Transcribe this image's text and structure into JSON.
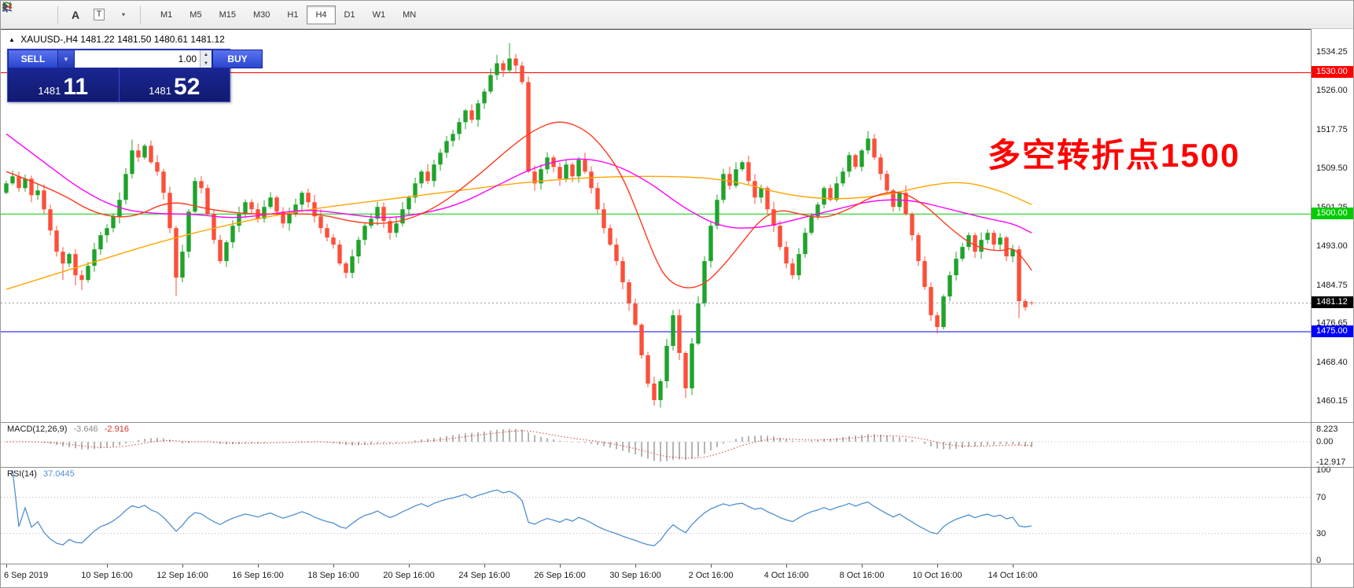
{
  "toolbar": {
    "icons": [
      {
        "name": "chart-type-icon"
      },
      {
        "name": "indicators-icon"
      },
      {
        "name": "text-tool-icon",
        "glyph": "A"
      },
      {
        "name": "label-tool-icon",
        "glyph": "T"
      },
      {
        "name": "drawing-tool-icon",
        "glyph": "▾"
      }
    ],
    "timeframes": [
      "M1",
      "M5",
      "M15",
      "M30",
      "H1",
      "H4",
      "D1",
      "W1",
      "MN"
    ],
    "active_timeframe": "H4"
  },
  "chart": {
    "title_arrow": "▲",
    "symbol": "XAUUSD-,H4",
    "ohlc": "1481.22 1481.50 1480.61 1481.12",
    "annotation": {
      "text": "多空转折点1500",
      "color": "#ff0000"
    }
  },
  "trade_panel": {
    "sell_label": "SELL",
    "buy_label": "BUY",
    "volume": "1.00",
    "dropdown_glyph": "▼",
    "spin_up_glyph": "▲",
    "spin_down_glyph": "▼",
    "bid": {
      "prefix": "1481",
      "big": "11"
    },
    "ask": {
      "prefix": "1481",
      "big": "52"
    }
  },
  "chart_data": {
    "type": "candlestick",
    "symbol": "XAUUSD",
    "timeframe": "H4",
    "last_ohlc": {
      "open": 1481.22,
      "high": 1481.5,
      "low": 1480.61,
      "close": 1481.12
    },
    "price_axis": {
      "ticks": [
        "1534.25",
        "1526.00",
        "1517.75",
        "1509.50",
        "1501.25",
        "1493.00",
        "1484.75",
        "1476.65",
        "1468.40",
        "1460.15"
      ]
    },
    "hlines": [
      {
        "value": 1530.0,
        "label": "1530.00",
        "color": "#ff0000"
      },
      {
        "value": 1500.0,
        "label": "1500.00",
        "color": "#00cc00"
      },
      {
        "value": 1475.0,
        "label": "1475.00",
        "color": "#0000ff"
      }
    ],
    "current_price": {
      "value": 1481.12,
      "label": "1481.12"
    },
    "candles": {
      "up_color": "#1fa32b",
      "down_color": "#fb4f3a",
      "first_open": 1504.5,
      "closes": [
        1506.5,
        1508.0,
        1505.5,
        1507.5,
        1504.0,
        1505.0,
        1501.0,
        1496.5,
        1492.0,
        1489.5,
        1491.5,
        1487.0,
        1486.0,
        1489.0,
        1492.5,
        1495.5,
        1497.0,
        1499.5,
        1503.0,
        1508.5,
        1513.5,
        1512.0,
        1514.5,
        1511.0,
        1509.0,
        1504.5,
        1497.0,
        1486.5,
        1492.0,
        1500.5,
        1507.0,
        1505.5,
        1500.0,
        1494.5,
        1490.0,
        1494.0,
        1497.5,
        1500.0,
        1502.5,
        1501.0,
        1499.0,
        1501.5,
        1503.5,
        1500.5,
        1498.0,
        1500.0,
        1502.0,
        1504.5,
        1502.5,
        1499.5,
        1497.0,
        1495.0,
        1493.5,
        1489.5,
        1487.5,
        1491.0,
        1494.5,
        1497.5,
        1499.0,
        1501.5,
        1498.5,
        1496.0,
        1498.0,
        1501.0,
        1503.5,
        1506.5,
        1509.0,
        1507.0,
        1510.5,
        1513.0,
        1515.5,
        1517.0,
        1519.5,
        1522.0,
        1520.0,
        1523.5,
        1526.0,
        1529.5,
        1532.0,
        1530.5,
        1533.0,
        1531.5,
        1528.0,
        1509.0,
        1506.5,
        1509.5,
        1512.0,
        1510.0,
        1507.5,
        1510.5,
        1508.0,
        1511.5,
        1509.0,
        1505.5,
        1501.0,
        1497.0,
        1493.5,
        1490.0,
        1485.5,
        1481.0,
        1476.5,
        1470.0,
        1464.0,
        1460.5,
        1464.5,
        1472.0,
        1478.5,
        1470.5,
        1463.0,
        1472.5,
        1481.0,
        1490.0,
        1497.5,
        1503.0,
        1508.5,
        1506.0,
        1509.5,
        1511.0,
        1507.0,
        1503.5,
        1505.5,
        1501.0,
        1497.5,
        1493.0,
        1489.5,
        1487.0,
        1491.5,
        1496.0,
        1499.5,
        1502.0,
        1505.5,
        1503.0,
        1506.5,
        1509.0,
        1512.5,
        1510.0,
        1513.5,
        1516.0,
        1512.0,
        1508.5,
        1505.0,
        1501.5,
        1504.5,
        1500.0,
        1495.5,
        1490.0,
        1484.5,
        1478.5,
        1476.0,
        1482.5,
        1487.0,
        1490.5,
        1493.0,
        1495.5,
        1492.0,
        1494.5,
        1496.0,
        1493.5,
        1495.0,
        1491.0,
        1492.5,
        1481.5,
        1480.2,
        1481.12
      ],
      "wick_overrides": {
        "high": {
          "20": 1515.8,
          "78": 1533.8,
          "80": 1536.3,
          "137": 1517.6
        },
        "low": {
          "9": 1486.0,
          "11": 1484.8,
          "12": 1483.9,
          "27": 1482.6,
          "54": 1486.4,
          "103": 1459.3,
          "108": 1460.9,
          "125": 1486.2,
          "148": 1474.6,
          "161": 1477.9
        }
      }
    },
    "moving_averages": [
      {
        "name": "ma-slow-orange",
        "color": "#ffa500",
        "points": [
          [
            0,
            1484
          ],
          [
            12,
            1489
          ],
          [
            24,
            1494
          ],
          [
            36,
            1498
          ],
          [
            48,
            1501
          ],
          [
            60,
            1503
          ],
          [
            72,
            1505
          ],
          [
            84,
            1507
          ],
          [
            96,
            1508
          ],
          [
            108,
            1508
          ],
          [
            116,
            1507
          ],
          [
            124,
            1504
          ],
          [
            132,
            1503
          ],
          [
            140,
            1504
          ],
          [
            146,
            1506
          ],
          [
            152,
            1507
          ],
          [
            158,
            1505
          ],
          [
            163,
            1502
          ]
        ]
      },
      {
        "name": "ma-mid-magenta",
        "color": "#ff00ff",
        "points": [
          [
            0,
            1517
          ],
          [
            6,
            1511
          ],
          [
            12,
            1505
          ],
          [
            18,
            1501
          ],
          [
            24,
            1500
          ],
          [
            30,
            1500
          ],
          [
            36,
            1499
          ],
          [
            42,
            1500
          ],
          [
            48,
            1501
          ],
          [
            54,
            1500
          ],
          [
            60,
            1499
          ],
          [
            66,
            1500
          ],
          [
            72,
            1502
          ],
          [
            78,
            1506
          ],
          [
            84,
            1510
          ],
          [
            90,
            1512
          ],
          [
            96,
            1511
          ],
          [
            102,
            1507
          ],
          [
            108,
            1501
          ],
          [
            114,
            1497
          ],
          [
            120,
            1497
          ],
          [
            126,
            1499
          ],
          [
            132,
            1501
          ],
          [
            138,
            1503
          ],
          [
            144,
            1503
          ],
          [
            150,
            1501
          ],
          [
            156,
            1499
          ],
          [
            160,
            1498
          ],
          [
            163,
            1496
          ]
        ]
      },
      {
        "name": "ma-fast-red",
        "color": "#ff3b1e",
        "points": [
          [
            0,
            1509
          ],
          [
            8,
            1505
          ],
          [
            14,
            1500
          ],
          [
            20,
            1499
          ],
          [
            26,
            1503
          ],
          [
            32,
            1501
          ],
          [
            38,
            1500
          ],
          [
            44,
            1500
          ],
          [
            50,
            1500
          ],
          [
            56,
            1498
          ],
          [
            62,
            1498
          ],
          [
            68,
            1501
          ],
          [
            74,
            1507
          ],
          [
            80,
            1514
          ],
          [
            84,
            1518
          ],
          [
            88,
            1520
          ],
          [
            92,
            1518
          ],
          [
            95,
            1514
          ],
          [
            98,
            1508
          ],
          [
            101,
            1498
          ],
          [
            103,
            1491
          ],
          [
            105,
            1486
          ],
          [
            108,
            1484
          ],
          [
            111,
            1485
          ],
          [
            114,
            1489
          ],
          [
            117,
            1494
          ],
          [
            120,
            1499
          ],
          [
            123,
            1501
          ],
          [
            126,
            1500
          ],
          [
            130,
            1499
          ],
          [
            134,
            1501
          ],
          [
            138,
            1504
          ],
          [
            142,
            1505
          ],
          [
            146,
            1502
          ],
          [
            150,
            1497
          ],
          [
            154,
            1493
          ],
          [
            158,
            1492
          ],
          [
            160,
            1493
          ],
          [
            162,
            1490
          ],
          [
            163,
            1488
          ]
        ]
      }
    ],
    "time_axis": [
      {
        "label": "6 Sep 2019",
        "bar": 0
      },
      {
        "label": "10 Sep 16:00",
        "bar": 16
      },
      {
        "label": "12 Sep 16:00",
        "bar": 28
      },
      {
        "label": "16 Sep 16:00",
        "bar": 40
      },
      {
        "label": "18 Sep 16:00",
        "bar": 52
      },
      {
        "label": "20 Sep 16:00",
        "bar": 64
      },
      {
        "label": "24 Sep 16:00",
        "bar": 76
      },
      {
        "label": "26 Sep 16:00",
        "bar": 88
      },
      {
        "label": "30 Sep 16:00",
        "bar": 100
      },
      {
        "label": "2 Oct 16:00",
        "bar": 112
      },
      {
        "label": "4 Oct 16:00",
        "bar": 124
      },
      {
        "label": "8 Oct 16:00",
        "bar": 136
      },
      {
        "label": "10 Oct 16:00",
        "bar": 148
      },
      {
        "label": "14 Oct 16:00",
        "bar": 160
      }
    ],
    "macd": {
      "label": "MACD(12,26,9)",
      "value_main": "-3.646",
      "value_signal": "-2.916",
      "params": [
        12,
        26,
        9
      ],
      "scale": [
        "8.223",
        "0.00",
        "-12.917"
      ],
      "histogram_color": "#b4b4b4",
      "signal_color": "#e23a2e"
    },
    "rsi": {
      "label": "RSI(14)",
      "value": "37.0445",
      "period": 14,
      "scale": [
        "100",
        "70",
        "30",
        "0"
      ],
      "levels": [
        70,
        30
      ],
      "line_color": "#4f8fd0"
    }
  }
}
